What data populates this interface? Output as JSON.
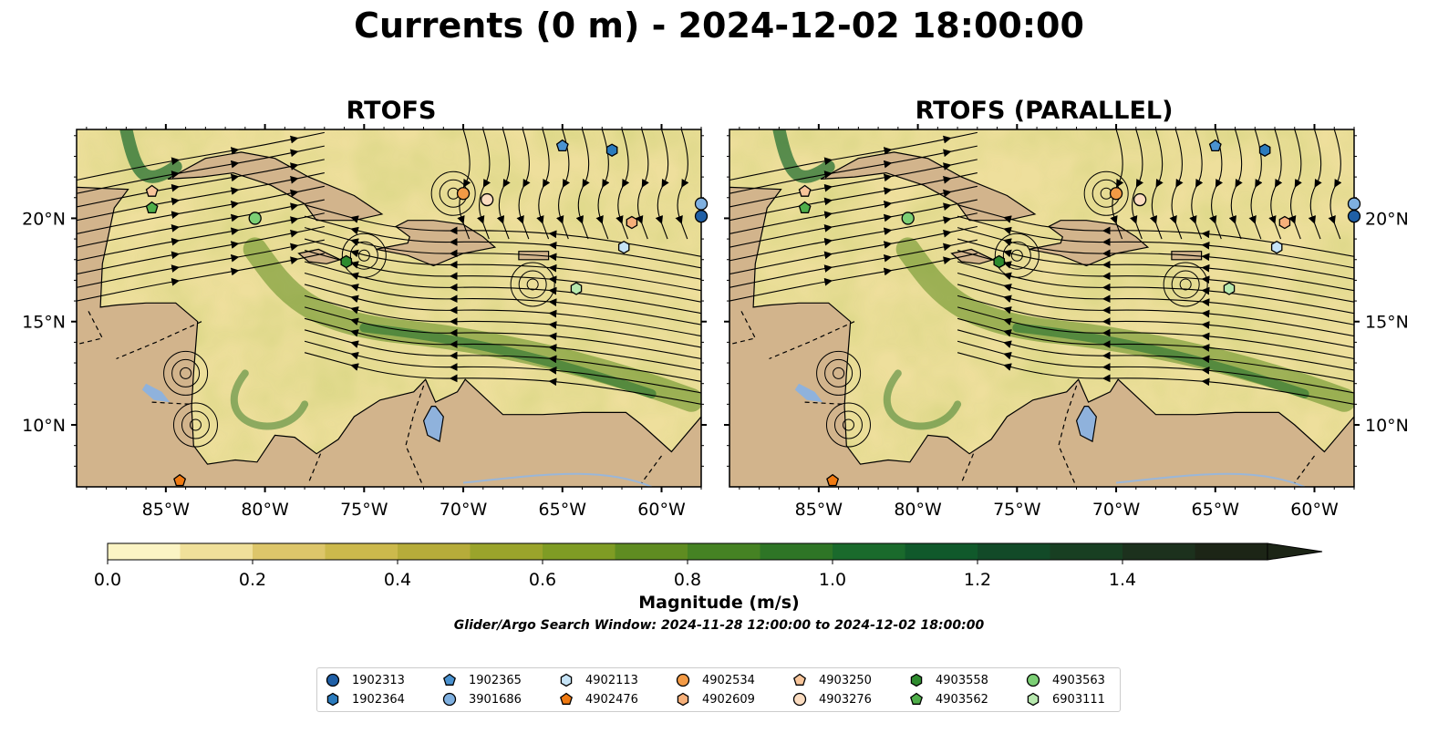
{
  "title": "Currents (0 m) - 2024-12-02 18:00:00",
  "panels": [
    {
      "title": "RTOFS"
    },
    {
      "title": "RTOFS (PARALLEL)"
    }
  ],
  "axes": {
    "lon_ticks": [
      "85°W",
      "80°W",
      "75°W",
      "70°W",
      "65°W",
      "60°W"
    ],
    "lat_ticks": [
      "20°N",
      "15°N",
      "10°N"
    ]
  },
  "colorbar": {
    "label": "Magnitude (m/s)",
    "ticks": [
      "0.0",
      "0.2",
      "0.4",
      "0.6",
      "0.8",
      "1.0",
      "1.2",
      "1.4"
    ],
    "range": [
      0,
      1.6
    ],
    "extend": "max",
    "colors": [
      "#fbf4c4",
      "#f0e09a",
      "#ddc66a",
      "#ccb94c",
      "#b6ac3a",
      "#9aa42b",
      "#7f9c24",
      "#5f8c21",
      "#458223",
      "#2e7526",
      "#1a6a2c",
      "#10592b",
      "#124a28",
      "#183f22",
      "#1c311d",
      "#1c2516"
    ]
  },
  "search_window": "Glider/Argo Search Window: 2024-11-28 12:00:00 to 2024-12-02 18:00:00",
  "legend": [
    {
      "id": "1902313",
      "shape": "circle",
      "color": "#1f5fa6"
    },
    {
      "id": "1902364",
      "shape": "hexagon",
      "color": "#2b7bbd"
    },
    {
      "id": "1902365",
      "shape": "pentagon",
      "color": "#4a92d0"
    },
    {
      "id": "3901686",
      "shape": "circle",
      "color": "#7fb0e0"
    },
    {
      "id": "4902113",
      "shape": "hexagon",
      "color": "#c6e4f7"
    },
    {
      "id": "4902476",
      "shape": "pentagon",
      "color": "#f07a12"
    },
    {
      "id": "4902534",
      "shape": "circle",
      "color": "#f39a45"
    },
    {
      "id": "4902609",
      "shape": "hexagon",
      "color": "#f6b07a"
    },
    {
      "id": "4903250",
      "shape": "pentagon",
      "color": "#f8c59a"
    },
    {
      "id": "4903276",
      "shape": "circle",
      "color": "#fbdcc0"
    },
    {
      "id": "4903558",
      "shape": "hexagon",
      "color": "#2e8b2e"
    },
    {
      "id": "4903562",
      "shape": "pentagon",
      "color": "#4fae4a"
    },
    {
      "id": "4903563",
      "shape": "circle",
      "color": "#7ccf75"
    },
    {
      "id": "6903111",
      "shape": "hexagon",
      "color": "#b7e8ae"
    }
  ],
  "map_colors": {
    "land": "#d2b48c",
    "lake": "#8fb2dc",
    "river": "#9ab6d8",
    "stream": "#000000"
  },
  "floats": [
    {
      "id": "1902365",
      "lon": -65.0,
      "lat": 23.5
    },
    {
      "id": "1902364",
      "lon": -62.5,
      "lat": 23.3
    },
    {
      "id": "3901686",
      "lon": -58.0,
      "lat": 20.7
    },
    {
      "id": "1902313",
      "lon": -58.0,
      "lat": 20.1
    },
    {
      "id": "4903250",
      "lon": -85.7,
      "lat": 21.3
    },
    {
      "id": "4903562",
      "lon": -85.7,
      "lat": 20.5
    },
    {
      "id": "4903563",
      "lon": -80.5,
      "lat": 20.0
    },
    {
      "id": "4902534",
      "lon": -70.0,
      "lat": 21.2
    },
    {
      "id": "4903276",
      "lon": -68.8,
      "lat": 20.9
    },
    {
      "id": "4902609",
      "lon": -61.5,
      "lat": 19.8
    },
    {
      "id": "4902113",
      "lon": -61.9,
      "lat": 18.6
    },
    {
      "id": "4903558",
      "lon": -75.9,
      "lat": 17.9
    },
    {
      "id": "6903111",
      "lon": -64.3,
      "lat": 16.6
    },
    {
      "id": "4902476",
      "lon": -84.3,
      "lat": 7.3
    }
  ]
}
